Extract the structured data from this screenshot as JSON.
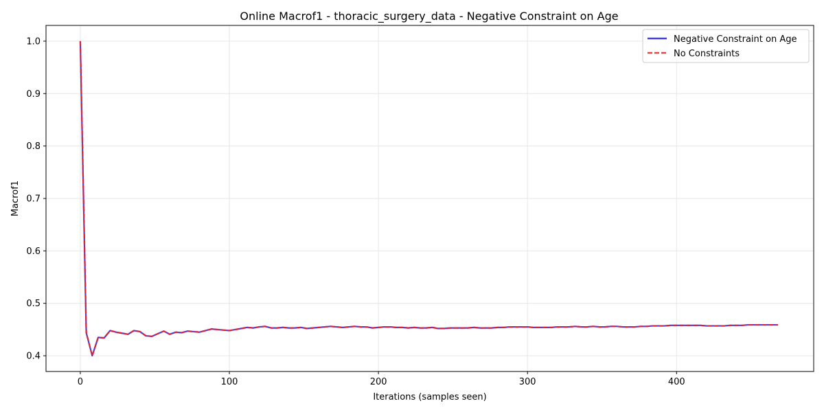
{
  "chart_data": {
    "type": "line",
    "title": "Online Macrof1 - thoracic_surgery_data - Negative Constraint on Age",
    "xlabel": "Iterations (samples seen)",
    "ylabel": "Macrof1",
    "xlim": [
      -23,
      492
    ],
    "ylim": [
      0.37,
      1.03
    ],
    "xticks": [
      0,
      100,
      200,
      300,
      400
    ],
    "yticks": [
      0.4,
      0.5,
      0.6,
      0.7,
      0.8,
      0.9,
      1.0
    ],
    "xtick_labels": [
      "0",
      "100",
      "200",
      "300",
      "400"
    ],
    "ytick_labels": [
      "0.4",
      "0.5",
      "0.6",
      "0.7",
      "0.8",
      "0.9",
      "1.0"
    ],
    "grid": true,
    "legend_position": "top-right",
    "series": [
      {
        "name": "Negative Constraint on Age",
        "color": "#1f1fe6",
        "style": "solid",
        "x": [
          0,
          4,
          8,
          12,
          16,
          20,
          24,
          28,
          32,
          36,
          40,
          44,
          48,
          52,
          56,
          60,
          64,
          68,
          72,
          76,
          80,
          84,
          88,
          92,
          96,
          100,
          104,
          108,
          112,
          116,
          120,
          124,
          128,
          132,
          136,
          140,
          144,
          148,
          152,
          156,
          160,
          164,
          168,
          172,
          176,
          180,
          184,
          188,
          192,
          196,
          200,
          204,
          208,
          212,
          216,
          220,
          224,
          228,
          232,
          236,
          240,
          244,
          248,
          252,
          256,
          260,
          264,
          268,
          272,
          276,
          280,
          284,
          288,
          292,
          296,
          300,
          304,
          308,
          312,
          316,
          320,
          324,
          328,
          332,
          336,
          340,
          344,
          348,
          352,
          356,
          360,
          364,
          368,
          372,
          376,
          380,
          384,
          388,
          392,
          396,
          400,
          404,
          408,
          412,
          416,
          420,
          424,
          428,
          432,
          436,
          440,
          444,
          448,
          452,
          456,
          460,
          464,
          468
        ],
        "y": [
          1.0,
          0.444,
          0.4,
          0.435,
          0.434,
          0.448,
          0.445,
          0.443,
          0.441,
          0.448,
          0.446,
          0.438,
          0.437,
          0.442,
          0.447,
          0.441,
          0.445,
          0.444,
          0.447,
          0.446,
          0.445,
          0.448,
          0.451,
          0.45,
          0.449,
          0.448,
          0.45,
          0.452,
          0.454,
          0.453,
          0.455,
          0.456,
          0.453,
          0.453,
          0.454,
          0.453,
          0.453,
          0.454,
          0.452,
          0.453,
          0.454,
          0.455,
          0.456,
          0.455,
          0.454,
          0.455,
          0.456,
          0.455,
          0.455,
          0.453,
          0.454,
          0.455,
          0.455,
          0.454,
          0.454,
          0.453,
          0.454,
          0.453,
          0.453,
          0.454,
          0.452,
          0.452,
          0.453,
          0.453,
          0.453,
          0.453,
          0.454,
          0.453,
          0.453,
          0.453,
          0.454,
          0.454,
          0.455,
          0.455,
          0.455,
          0.455,
          0.454,
          0.454,
          0.454,
          0.454,
          0.455,
          0.455,
          0.455,
          0.456,
          0.455,
          0.455,
          0.456,
          0.455,
          0.455,
          0.456,
          0.456,
          0.455,
          0.455,
          0.455,
          0.456,
          0.456,
          0.457,
          0.457,
          0.457,
          0.458,
          0.458,
          0.458,
          0.458,
          0.458,
          0.458,
          0.457,
          0.457,
          0.457,
          0.457,
          0.458,
          0.458,
          0.458,
          0.459,
          0.459,
          0.459,
          0.459,
          0.459,
          0.459
        ]
      },
      {
        "name": "No Constraints",
        "color": "#f01e1e",
        "style": "dashed",
        "x": [
          0,
          4,
          8,
          12,
          16,
          20,
          24,
          28,
          32,
          36,
          40,
          44,
          48,
          52,
          56,
          60,
          64,
          68,
          72,
          76,
          80,
          84,
          88,
          92,
          96,
          100,
          104,
          108,
          112,
          116,
          120,
          124,
          128,
          132,
          136,
          140,
          144,
          148,
          152,
          156,
          160,
          164,
          168,
          172,
          176,
          180,
          184,
          188,
          192,
          196,
          200,
          204,
          208,
          212,
          216,
          220,
          224,
          228,
          232,
          236,
          240,
          244,
          248,
          252,
          256,
          260,
          264,
          268,
          272,
          276,
          280,
          284,
          288,
          292,
          296,
          300,
          304,
          308,
          312,
          316,
          320,
          324,
          328,
          332,
          336,
          340,
          344,
          348,
          352,
          356,
          360,
          364,
          368,
          372,
          376,
          380,
          384,
          388,
          392,
          396,
          400,
          404,
          408,
          412,
          416,
          420,
          424,
          428,
          432,
          436,
          440,
          444,
          448,
          452,
          456,
          460,
          464,
          468
        ],
        "y": [
          1.0,
          0.444,
          0.4,
          0.435,
          0.434,
          0.448,
          0.445,
          0.443,
          0.441,
          0.448,
          0.446,
          0.438,
          0.437,
          0.442,
          0.447,
          0.441,
          0.445,
          0.444,
          0.447,
          0.446,
          0.445,
          0.448,
          0.451,
          0.45,
          0.449,
          0.448,
          0.45,
          0.452,
          0.454,
          0.453,
          0.455,
          0.456,
          0.453,
          0.453,
          0.454,
          0.453,
          0.453,
          0.454,
          0.452,
          0.453,
          0.454,
          0.455,
          0.456,
          0.455,
          0.454,
          0.455,
          0.456,
          0.455,
          0.455,
          0.453,
          0.454,
          0.455,
          0.455,
          0.454,
          0.454,
          0.453,
          0.454,
          0.453,
          0.453,
          0.454,
          0.452,
          0.452,
          0.453,
          0.453,
          0.453,
          0.453,
          0.454,
          0.453,
          0.453,
          0.453,
          0.454,
          0.454,
          0.455,
          0.455,
          0.455,
          0.455,
          0.454,
          0.454,
          0.454,
          0.454,
          0.455,
          0.455,
          0.455,
          0.456,
          0.455,
          0.455,
          0.456,
          0.455,
          0.455,
          0.456,
          0.456,
          0.455,
          0.455,
          0.455,
          0.456,
          0.456,
          0.457,
          0.457,
          0.457,
          0.458,
          0.458,
          0.458,
          0.458,
          0.458,
          0.458,
          0.457,
          0.457,
          0.457,
          0.457,
          0.458,
          0.458,
          0.458,
          0.459,
          0.459,
          0.459,
          0.459,
          0.459,
          0.459
        ]
      }
    ]
  }
}
